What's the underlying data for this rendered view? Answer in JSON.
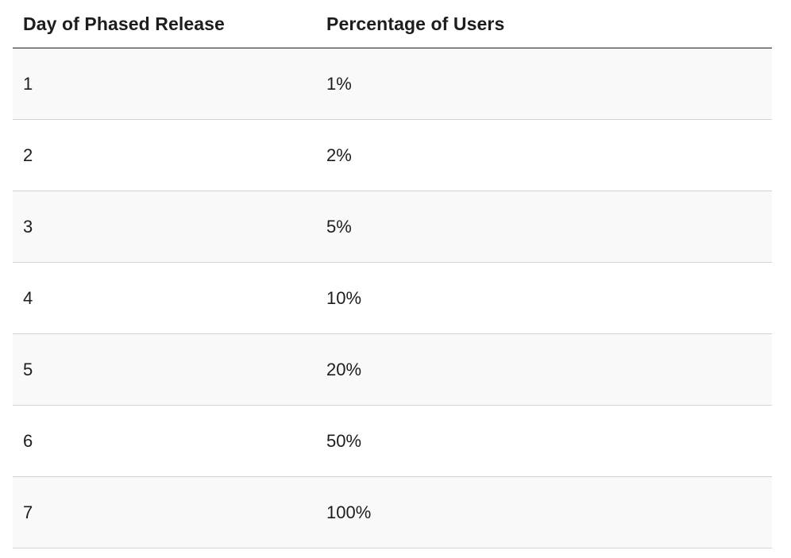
{
  "table": {
    "headers": {
      "day": "Day of Phased Release",
      "percentage": "Percentage of Users"
    },
    "rows": [
      {
        "day": "1",
        "percentage": "1%"
      },
      {
        "day": "2",
        "percentage": "2%"
      },
      {
        "day": "3",
        "percentage": "5%"
      },
      {
        "day": "4",
        "percentage": "10%"
      },
      {
        "day": "5",
        "percentage": "20%"
      },
      {
        "day": "6",
        "percentage": "50%"
      },
      {
        "day": "7",
        "percentage": "100%"
      }
    ]
  }
}
